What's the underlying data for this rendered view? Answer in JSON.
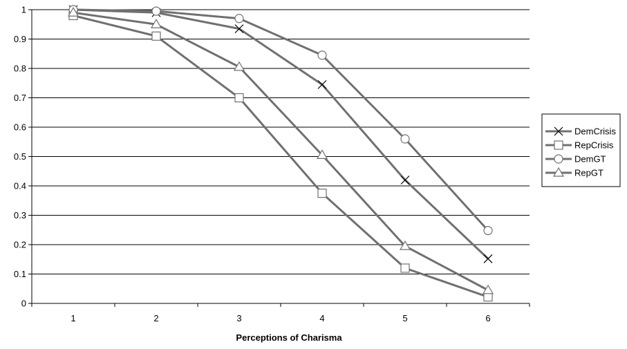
{
  "chart_data": {
    "type": "line",
    "title": "",
    "xlabel": "Perceptions of Charisma",
    "ylabel": "",
    "categories": [
      "1",
      "2",
      "3",
      "4",
      "5",
      "6"
    ],
    "ylim": [
      0,
      1
    ],
    "yticks": [
      "0",
      "0.1",
      "0.2",
      "0.3",
      "0.4",
      "0.5",
      "0.6",
      "0.7",
      "0.8",
      "0.9",
      "1"
    ],
    "grid": "horizontal",
    "legend_position": "right",
    "line_color": "#707070",
    "series": [
      {
        "name": "DemCrisis",
        "marker": "x-marker",
        "values": [
          1.0,
          0.99,
          0.935,
          0.745,
          0.42,
          0.152
        ]
      },
      {
        "name": "RepCrisis",
        "marker": "square-marker",
        "values": [
          0.98,
          0.91,
          0.7,
          0.375,
          0.12,
          0.022
        ]
      },
      {
        "name": "DemGT",
        "marker": "circle-marker",
        "values": [
          1.0,
          0.995,
          0.97,
          0.845,
          0.56,
          0.248
        ]
      },
      {
        "name": "RepGT",
        "marker": "triangle-marker",
        "values": [
          0.99,
          0.95,
          0.805,
          0.505,
          0.195,
          0.045
        ]
      }
    ]
  }
}
